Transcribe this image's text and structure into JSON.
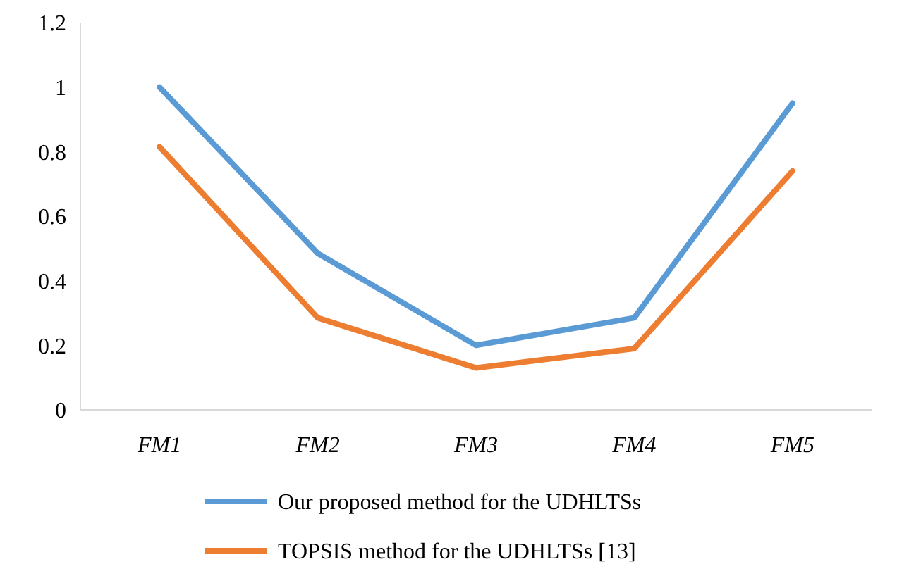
{
  "chart_data": {
    "type": "line",
    "categories": [
      "FM1",
      "FM2",
      "FM3",
      "FM4",
      "FM5"
    ],
    "series": [
      {
        "name": "Our proposed method for the UDHLTSs",
        "color": "#5b9bd5",
        "values": [
          1.0,
          0.485,
          0.2,
          0.285,
          0.95
        ]
      },
      {
        "name": "TOPSIS method for the UDHLTSs [13]",
        "color": "#ed7d31",
        "values": [
          0.815,
          0.285,
          0.13,
          0.19,
          0.74
        ]
      }
    ],
    "ylim": [
      0,
      1.2
    ],
    "yticks": [
      0,
      0.2,
      0.4,
      0.6,
      0.8,
      1,
      1.2
    ],
    "grid": false,
    "legend": "bottom",
    "marker": "none",
    "line_style": "solid"
  }
}
